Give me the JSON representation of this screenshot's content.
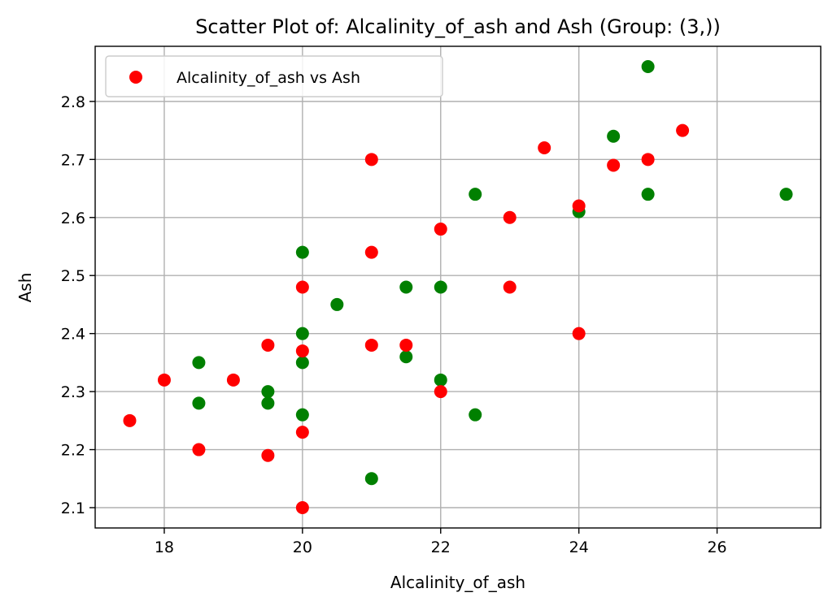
{
  "chart_data": {
    "type": "scatter",
    "title": "Scatter Plot of: Alcalinity_of_ash and Ash (Group: (3,))",
    "xlabel": "Alcalinity_of_ash",
    "ylabel": "Ash",
    "xlim": [
      17.0,
      27.5
    ],
    "ylim": [
      2.065,
      2.895
    ],
    "xticks": [
      18,
      20,
      22,
      24,
      26
    ],
    "yticks": [
      2.1,
      2.2,
      2.3,
      2.4,
      2.5,
      2.6,
      2.7,
      2.8
    ],
    "xtick_labels": [
      "18",
      "20",
      "22",
      "24",
      "26"
    ],
    "ytick_labels": [
      "2.1",
      "2.2",
      "2.3",
      "2.4",
      "2.5",
      "2.6",
      "2.7",
      "2.8"
    ],
    "grid": true,
    "legend": {
      "position": "upper-left",
      "entries": [
        "Alcalinity_of_ash vs Ash"
      ]
    },
    "series": [
      {
        "name": "Alcalinity_of_ash vs Ash",
        "color": "#ff0000",
        "points": [
          [
            17.5,
            2.25
          ],
          [
            18.0,
            2.32
          ],
          [
            18.5,
            2.2
          ],
          [
            19.0,
            2.32
          ],
          [
            19.5,
            2.38
          ],
          [
            19.5,
            2.19
          ],
          [
            20.0,
            2.48
          ],
          [
            20.0,
            2.37
          ],
          [
            20.0,
            2.23
          ],
          [
            20.0,
            2.1
          ],
          [
            21.0,
            2.7
          ],
          [
            21.0,
            2.54
          ],
          [
            21.0,
            2.38
          ],
          [
            21.5,
            2.38
          ],
          [
            22.0,
            2.58
          ],
          [
            22.0,
            2.3
          ],
          [
            23.0,
            2.6
          ],
          [
            23.0,
            2.48
          ],
          [
            23.5,
            2.72
          ],
          [
            24.0,
            2.62
          ],
          [
            24.0,
            2.4
          ],
          [
            24.5,
            2.69
          ],
          [
            25.0,
            2.7
          ],
          [
            25.5,
            2.75
          ]
        ]
      },
      {
        "color": "#008000",
        "points": [
          [
            18.5,
            2.35
          ],
          [
            18.5,
            2.28
          ],
          [
            19.5,
            2.3
          ],
          [
            19.5,
            2.28
          ],
          [
            20.0,
            2.54
          ],
          [
            20.0,
            2.4
          ],
          [
            20.0,
            2.35
          ],
          [
            20.0,
            2.26
          ],
          [
            20.5,
            2.45
          ],
          [
            21.0,
            2.15
          ],
          [
            21.5,
            2.48
          ],
          [
            21.5,
            2.36
          ],
          [
            22.0,
            2.48
          ],
          [
            22.0,
            2.32
          ],
          [
            22.5,
            2.64
          ],
          [
            22.5,
            2.26
          ],
          [
            24.0,
            2.61
          ],
          [
            24.5,
            2.74
          ],
          [
            25.0,
            2.86
          ],
          [
            25.0,
            2.64
          ],
          [
            27.0,
            2.64
          ]
        ]
      }
    ]
  }
}
